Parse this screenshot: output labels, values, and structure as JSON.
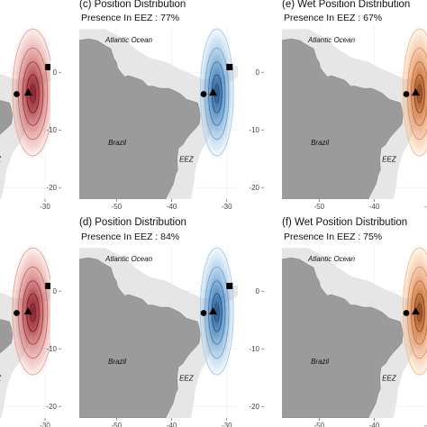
{
  "panels": [
    {
      "id": "a",
      "title": "",
      "subtitle": "",
      "palette": "red"
    },
    {
      "id": "b",
      "title": "",
      "subtitle": "",
      "palette": "red"
    },
    {
      "id": "c",
      "title": "(c) Position Distribution",
      "subtitle": "Presence In EEZ : 77%",
      "palette": "blue"
    },
    {
      "id": "d",
      "title": "(d) Position Distribution",
      "subtitle": "Presence In EEZ : 84%",
      "palette": "blue"
    },
    {
      "id": "e",
      "title": "(e) Wet Position Distribution",
      "subtitle": "Presence In EEZ : 67%",
      "palette": "orange"
    },
    {
      "id": "f",
      "title": "(f) Wet Position Distribution",
      "subtitle": "Presence In EEZ : 75%",
      "palette": "orange"
    }
  ],
  "map_labels": {
    "ocean": "Atlantic Ocean",
    "land": "Brazil",
    "zone": "EEZ"
  },
  "axes": {
    "x_ticks": [
      "-50",
      "-40",
      "-30"
    ],
    "y_ticks": [
      "0",
      "-10",
      "-20"
    ],
    "x_range": [
      -60,
      -28
    ],
    "y_range": [
      -22,
      8
    ]
  },
  "markers": {
    "circle": {
      "lon": -34.2,
      "lat": -3.8
    },
    "triangle": {
      "lon": -32.5,
      "lat": -3.5
    },
    "square": {
      "lon": -29.5,
      "lat": 0.9
    }
  },
  "colors": {
    "land": "#9b9b9b",
    "eez": "#e6e6e6",
    "panel_bg": "#ffffff",
    "red": [
      "#f6d6d2",
      "#e7a09b",
      "#cc6a66",
      "#a8333b",
      "#7a1a22"
    ],
    "blue": [
      "#dceaf6",
      "#a9cbe8",
      "#6ea4d2",
      "#3b78b3",
      "#1f4f82"
    ],
    "orange": [
      "#fbe2cc",
      "#f3bd8d",
      "#e4925a",
      "#c7692f",
      "#8a3f17"
    ]
  },
  "density": {
    "lon_center": -31.8,
    "lat_center": -3.5,
    "lon_spread": 3.0,
    "lat_spread": 11
  }
}
